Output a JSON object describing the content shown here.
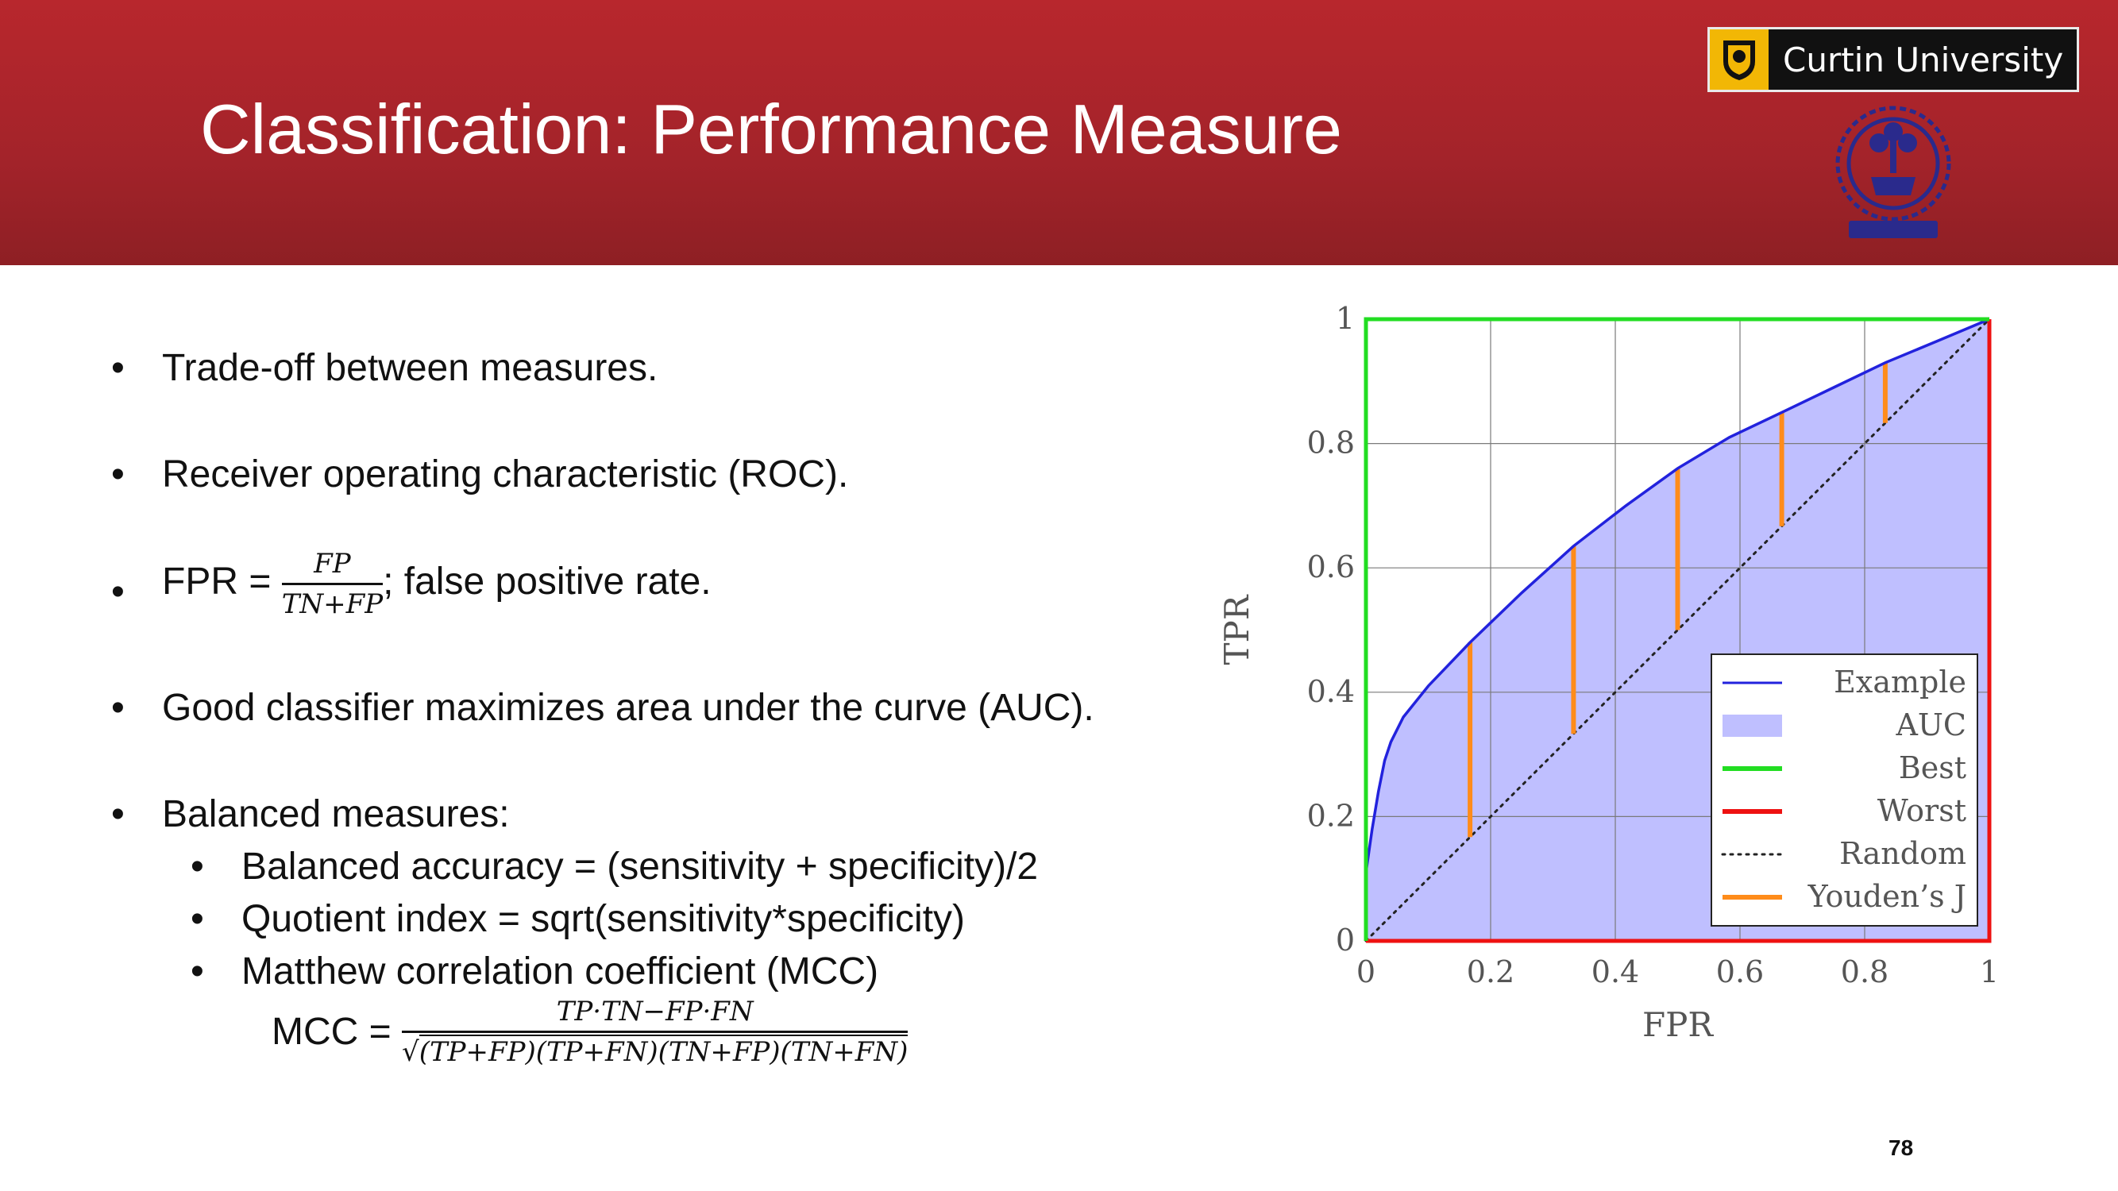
{
  "header": {
    "title": "Classification: Performance Measure",
    "university": "Curtin University",
    "colors": {
      "banner": "#a3232a",
      "curtin_gold": "#f2b705",
      "seal_blue": "#2a2a8c"
    }
  },
  "bullets": {
    "b1": "Trade-off between measures.",
    "b2": "Receiver operating characteristic (ROC).",
    "b3_prefix": "FPR = ",
    "b3_num": "FP",
    "b3_den": "TN+FP",
    "b3_suffix": "; false positive rate.",
    "b4": "Good classifier maximizes area under the curve (AUC).",
    "b5": "Balanced measures:",
    "sub1": "Balanced accuracy = (sensitivity + specificity)/2",
    "sub2": "Quotient index = sqrt(sensitivity*specificity)",
    "sub3": "Matthew correlation coefficient (MCC)",
    "mcc_prefix": "MCC = ",
    "mcc_num": "TP·TN−FP·FN",
    "mcc_den": "(TP+FP)(TP+FN)(TN+FP)(TN+FN)",
    "bullet_char": "•"
  },
  "page_number": "78",
  "chart_data": {
    "type": "line",
    "xlabel": "FPR",
    "ylabel": "TPR",
    "xlim": [
      0,
      1
    ],
    "ylim": [
      0,
      1
    ],
    "xticks": [
      "0",
      "0.2",
      "0.4",
      "0.6",
      "0.8",
      "1"
    ],
    "yticks": [
      "0",
      "0.2",
      "0.4",
      "0.6",
      "0.8",
      "1"
    ],
    "grid": true,
    "legend_position": "bottom-right",
    "series": [
      {
        "name": "Example",
        "color": "#2222dd",
        "x": [
          0,
          0.01,
          0.02,
          0.03,
          0.04,
          0.06,
          0.1,
          0.167,
          0.25,
          0.333,
          0.417,
          0.5,
          0.583,
          0.667,
          0.75,
          0.833,
          0.917,
          1
        ],
        "y": [
          0.11,
          0.18,
          0.24,
          0.29,
          0.32,
          0.36,
          0.41,
          0.48,
          0.56,
          0.635,
          0.7,
          0.76,
          0.81,
          0.85,
          0.89,
          0.93,
          0.965,
          1.0
        ]
      },
      {
        "name": "AUC",
        "color": "#bfbfff"
      },
      {
        "name": "Best",
        "color": "#22dd22",
        "x": [
          0,
          0,
          1
        ],
        "y": [
          0,
          1,
          1
        ]
      },
      {
        "name": "Worst",
        "color": "#ee1111",
        "x": [
          0,
          1,
          1
        ],
        "y": [
          0,
          0,
          1
        ]
      },
      {
        "name": "Random",
        "color": "#222222",
        "x": [
          0,
          1
        ],
        "y": [
          0,
          1
        ]
      },
      {
        "name": "Youden's J",
        "color": "#ff8c1a",
        "x": [
          0.167,
          0.333,
          0.5,
          0.667,
          0.833
        ],
        "y_low": [
          0.167,
          0.333,
          0.5,
          0.667,
          0.833
        ],
        "y_high": [
          0.48,
          0.635,
          0.76,
          0.85,
          0.93
        ]
      }
    ],
    "legend": [
      "Example",
      "AUC",
      "Best",
      "Worst",
      "Random",
      "Youden’s J"
    ]
  }
}
